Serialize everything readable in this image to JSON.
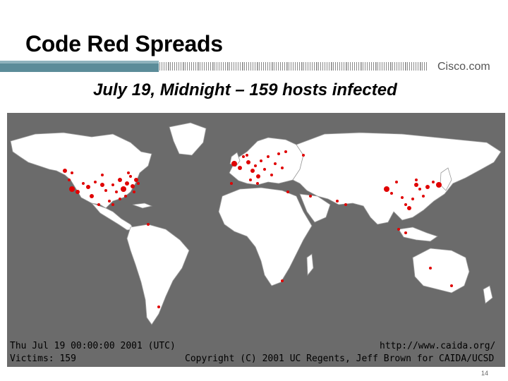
{
  "slide": {
    "title": "Code Red Spreads",
    "subtitle": "July 19, Midnight – 159 hosts infected",
    "brand": "Cisco.com",
    "page_number": "14"
  },
  "map": {
    "timestamp": "Thu Jul 19 00:00:00 2001 (UTC)",
    "victims_label": "Victims: 159",
    "source_url": "http://www.caida.org/",
    "copyright": "Copyright (C) 2001 UC Regents, Jeff Brown for CAIDA/UCSD",
    "colors": {
      "ocean": "#6b6b6b",
      "land": "#ffffff",
      "border": "#9a9a9a",
      "infection": "#e00000"
    }
  }
}
